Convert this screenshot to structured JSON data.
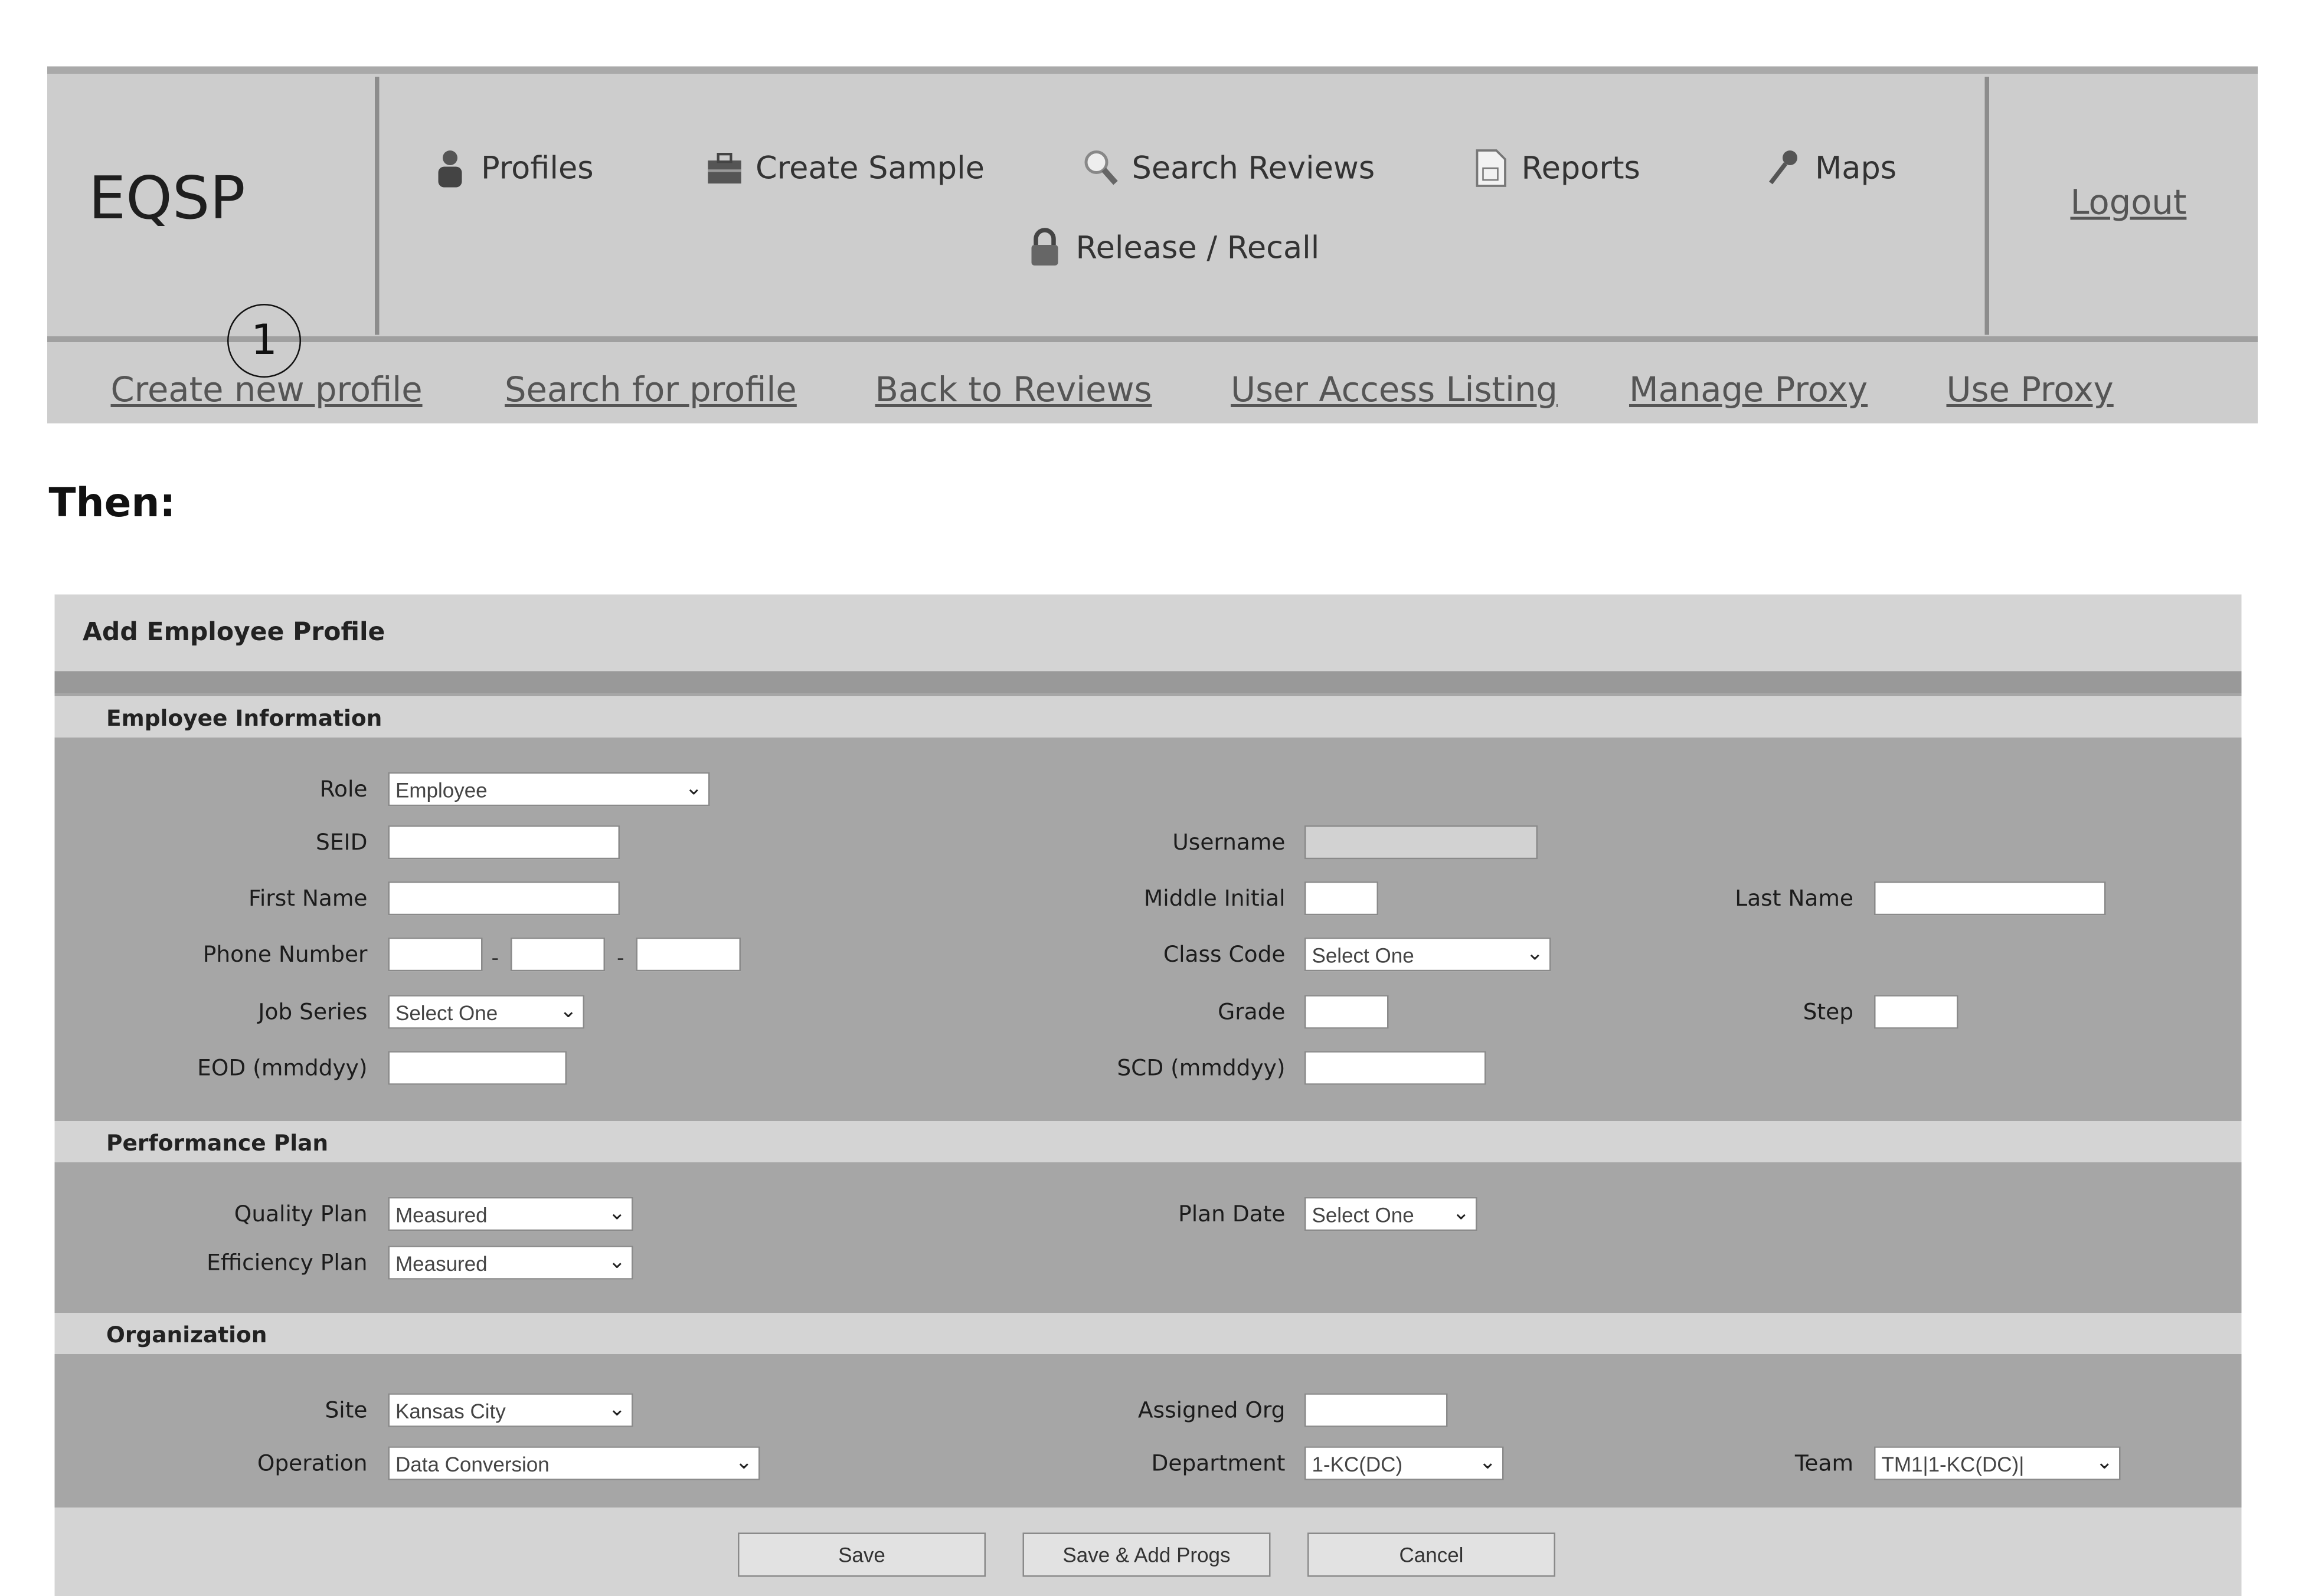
{
  "app": {
    "logo": "EQSP",
    "logout": "Logout"
  },
  "menu": [
    {
      "label": "Profiles",
      "icon": "user-icon"
    },
    {
      "label": "Create Sample",
      "icon": "briefcase-icon"
    },
    {
      "label": "Search Reviews",
      "icon": "magnifier-icon"
    },
    {
      "label": "Reports",
      "icon": "document-icon"
    },
    {
      "label": "Maps",
      "icon": "pushpin-icon"
    },
    {
      "label": "Release / Recall",
      "icon": "lock-icon"
    }
  ],
  "sublinks": [
    "Create new profile",
    "Search for profile",
    "Back to Reviews",
    "User Access Listing",
    "Manage Proxy",
    "Use Proxy"
  ],
  "annotation": "1",
  "then": "Then:",
  "form": {
    "title": "Add Employee Profile",
    "sections": [
      "Employee Information",
      "Performance Plan",
      "Organization"
    ],
    "fields": {
      "role": {
        "label": "Role",
        "value": "Employee"
      },
      "seid": {
        "label": "SEID",
        "value": ""
      },
      "username": {
        "label": "Username",
        "value": ""
      },
      "first_name": {
        "label": "First Name",
        "value": ""
      },
      "middle_initial": {
        "label": "Middle Initial",
        "value": ""
      },
      "last_name": {
        "label": "Last Name",
        "value": ""
      },
      "phone": {
        "label": "Phone Number",
        "sep": "-"
      },
      "class_code": {
        "label": "Class Code",
        "value": "Select One"
      },
      "job_series": {
        "label": "Job Series",
        "value": "Select One"
      },
      "grade": {
        "label": "Grade",
        "value": ""
      },
      "step": {
        "label": "Step",
        "value": ""
      },
      "eod": {
        "label": "EOD (mmddyy)",
        "value": ""
      },
      "scd": {
        "label": "SCD (mmddyy)",
        "value": ""
      },
      "quality_plan": {
        "label": "Quality Plan",
        "value": "Measured"
      },
      "plan_date": {
        "label": "Plan Date",
        "value": "Select One"
      },
      "efficiency_plan": {
        "label": "Efficiency Plan",
        "value": "Measured"
      },
      "site": {
        "label": "Site",
        "value": "Kansas City"
      },
      "assigned_org": {
        "label": "Assigned Org",
        "value": ""
      },
      "operation": {
        "label": "Operation",
        "value": "Data Conversion"
      },
      "department": {
        "label": "Department",
        "value": "1-KC(DC)"
      },
      "team": {
        "label": "Team",
        "value": "TM1|1-KC(DC)|"
      }
    },
    "buttons": {
      "save": "Save",
      "save_add": "Save & Add Progs",
      "cancel": "Cancel"
    }
  },
  "colors": {
    "header_bg": "#cdcdcd",
    "panel_bg": "#a6a6a6",
    "section_bg": "#d4d4d4"
  }
}
